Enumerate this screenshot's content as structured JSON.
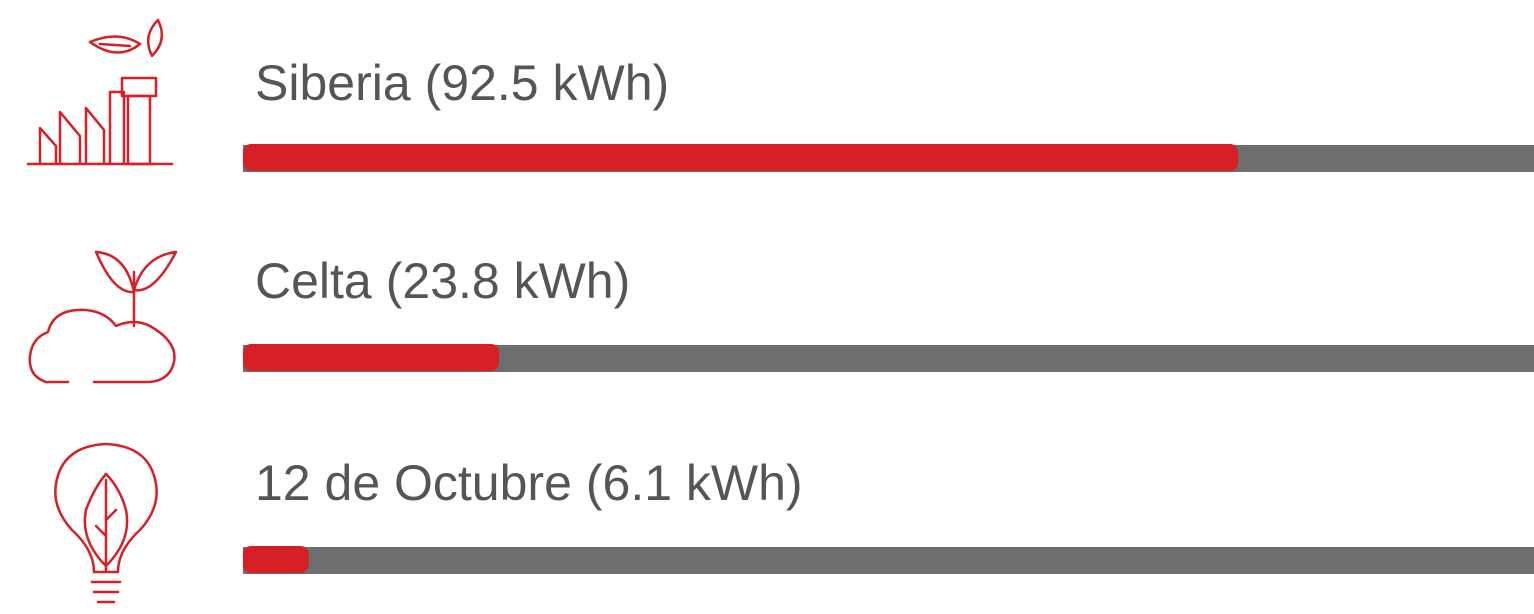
{
  "chart_data": {
    "type": "bar",
    "orientation": "horizontal",
    "categories": [
      "Siberia",
      "Celta",
      "12 de Octubre"
    ],
    "values": [
      92.5,
      23.8,
      6.1
    ],
    "value_labels": [
      "(92.5 kWh)",
      "(23.8 kWh)",
      "(6.1 kWh)"
    ],
    "color": "#d71f26",
    "track_color": "#6e6e6e",
    "xlim": [
      0,
      120
    ]
  }
}
